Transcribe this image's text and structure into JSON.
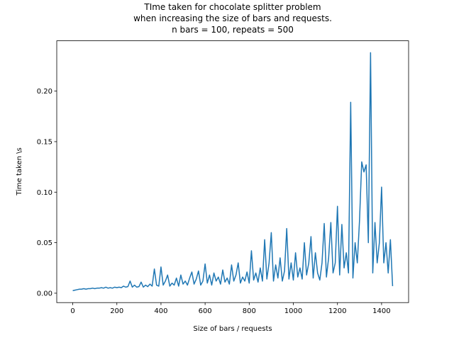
{
  "chart_data": {
    "type": "line",
    "title": "TIme taken for chocolate splitter problem\nwhen increasing the size of bars and requests.\nn bars = 100, repeats = 500",
    "xlabel": "Size of bars / requests",
    "ylabel": "Time taken \\s",
    "color": "#1f77b4",
    "x": [
      0,
      10,
      20,
      30,
      40,
      50,
      60,
      70,
      80,
      90,
      100,
      110,
      120,
      130,
      140,
      150,
      160,
      170,
      180,
      190,
      200,
      210,
      220,
      230,
      240,
      250,
      260,
      270,
      280,
      290,
      300,
      310,
      320,
      330,
      340,
      350,
      360,
      370,
      380,
      390,
      400,
      410,
      420,
      430,
      440,
      450,
      460,
      470,
      480,
      490,
      500,
      510,
      520,
      530,
      540,
      550,
      560,
      570,
      580,
      590,
      600,
      610,
      620,
      630,
      640,
      650,
      660,
      670,
      680,
      690,
      700,
      710,
      720,
      730,
      740,
      750,
      760,
      770,
      780,
      790,
      800,
      810,
      820,
      830,
      840,
      850,
      860,
      870,
      880,
      890,
      900,
      910,
      920,
      930,
      940,
      950,
      960,
      970,
      980,
      990,
      1000,
      1010,
      1020,
      1030,
      1040,
      1050,
      1060,
      1070,
      1080,
      1090,
      1100,
      1110,
      1120,
      1130,
      1140,
      1150,
      1160,
      1170,
      1180,
      1190,
      1200,
      1210,
      1220,
      1230,
      1240,
      1250,
      1260,
      1270,
      1280,
      1290,
      1300,
      1310,
      1320,
      1330,
      1340,
      1350,
      1360,
      1370,
      1380,
      1390,
      1400,
      1410,
      1420,
      1430,
      1440,
      1450
    ],
    "values": [
      0.0025,
      0.003,
      0.0035,
      0.004,
      0.004,
      0.0045,
      0.004,
      0.0045,
      0.0045,
      0.005,
      0.0045,
      0.005,
      0.005,
      0.0055,
      0.005,
      0.006,
      0.005,
      0.0055,
      0.005,
      0.006,
      0.0055,
      0.006,
      0.0055,
      0.007,
      0.006,
      0.0065,
      0.012,
      0.006,
      0.008,
      0.006,
      0.0065,
      0.011,
      0.006,
      0.008,
      0.0065,
      0.009,
      0.007,
      0.024,
      0.008,
      0.007,
      0.026,
      0.008,
      0.012,
      0.018,
      0.007,
      0.01,
      0.008,
      0.015,
      0.007,
      0.018,
      0.009,
      0.012,
      0.008,
      0.015,
      0.021,
      0.009,
      0.014,
      0.022,
      0.008,
      0.012,
      0.029,
      0.01,
      0.018,
      0.008,
      0.02,
      0.012,
      0.016,
      0.009,
      0.023,
      0.011,
      0.015,
      0.009,
      0.028,
      0.012,
      0.018,
      0.03,
      0.01,
      0.016,
      0.012,
      0.021,
      0.01,
      0.042,
      0.013,
      0.02,
      0.011,
      0.025,
      0.012,
      0.053,
      0.014,
      0.03,
      0.06,
      0.012,
      0.028,
      0.015,
      0.035,
      0.012,
      0.022,
      0.064,
      0.014,
      0.03,
      0.013,
      0.04,
      0.016,
      0.025,
      0.014,
      0.05,
      0.018,
      0.03,
      0.056,
      0.015,
      0.04,
      0.02,
      0.013,
      0.03,
      0.069,
      0.016,
      0.035,
      0.07,
      0.02,
      0.03,
      0.086,
      0.018,
      0.068,
      0.025,
      0.04,
      0.02,
      0.189,
      0.015,
      0.05,
      0.03,
      0.072,
      0.13,
      0.12,
      0.127,
      0.05,
      0.238,
      0.02,
      0.07,
      0.03,
      0.05,
      0.105,
      0.03,
      0.05,
      0.02,
      0.053,
      0.007
    ],
    "xlim": [
      -72.5,
      1522.5
    ],
    "ylim": [
      -0.0093,
      0.2498
    ],
    "xticks": [
      0,
      200,
      400,
      600,
      800,
      1000,
      1200,
      1400
    ],
    "yticks": [
      {
        "value": 0,
        "label": "0.00"
      },
      0.05,
      {
        "value": 0.1,
        "label": "0.10"
      },
      0.15,
      {
        "value": 0.2,
        "label": "0.20"
      }
    ]
  }
}
